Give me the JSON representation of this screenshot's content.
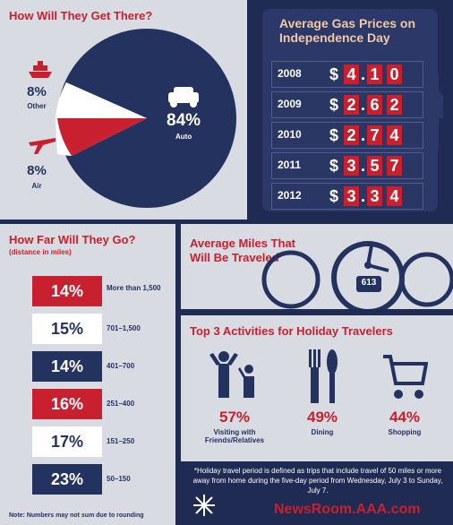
{
  "travel": {
    "title": "How Will They Get There?",
    "other_pct": "8%",
    "other_label": "Other",
    "air_pct": "8%",
    "air_label": "Air",
    "auto_pct": "84%",
    "auto_label": "Auto",
    "chart_data": {
      "type": "pie",
      "categories": [
        "Auto",
        "Other",
        "Air"
      ],
      "values": [
        84,
        8,
        8
      ]
    }
  },
  "gas": {
    "title_line1": "Average Gas Prices on",
    "title_line2": "Independence Day",
    "rows": [
      {
        "year": "2008",
        "price": "4.10"
      },
      {
        "year": "2009",
        "price": "2.62"
      },
      {
        "year": "2010",
        "price": "2.74"
      },
      {
        "year": "2011",
        "price": "3.57"
      },
      {
        "year": "2012",
        "price": "3.34"
      }
    ]
  },
  "distance": {
    "title": "How Far Will They Go?",
    "subtitle": "(distance in miles)",
    "items": [
      {
        "pct": "14%",
        "range": "More than 1,500"
      },
      {
        "pct": "15%",
        "range": "701–1,500"
      },
      {
        "pct": "14%",
        "range": "401–700"
      },
      {
        "pct": "16%",
        "range": "251–400"
      },
      {
        "pct": "17%",
        "range": "151–250"
      },
      {
        "pct": "23%",
        "range": "50–150"
      }
    ],
    "note": "Note: Numbers may not sum due to rounding"
  },
  "miles": {
    "title_line1": "Average Miles That",
    "title_line2": "Will Be Traveled",
    "value": "613"
  },
  "activities": {
    "title": "Top 3 Activities for Holiday Travelers",
    "items": [
      {
        "pct": "57%",
        "label": "Visiting with Friends/Relatives"
      },
      {
        "pct": "49%",
        "label": "Dining"
      },
      {
        "pct": "44%",
        "label": "Shopping"
      }
    ]
  },
  "footnote": "*Holiday travel period is defined as trips that include travel of 50 miles or more away from home during the five-day period from Wednesday, July 3 to Sunday, July 7.",
  "brand": "NewsRoom.AAA.com"
}
